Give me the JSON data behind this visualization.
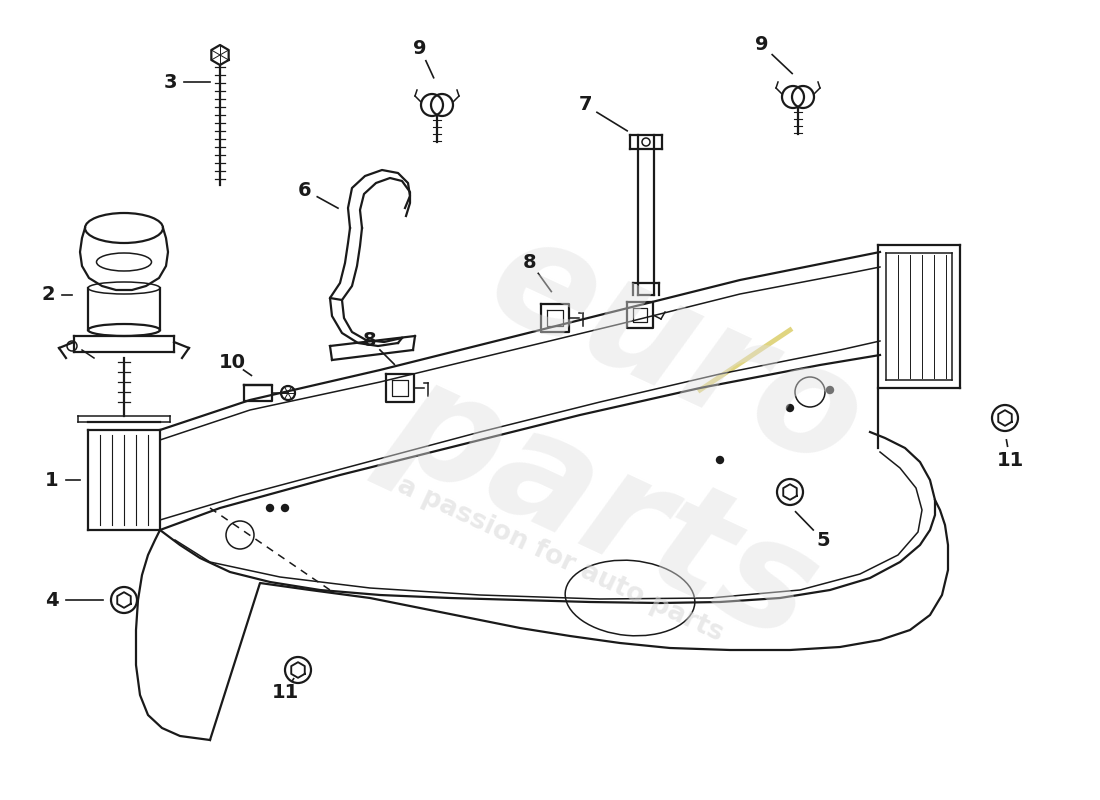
{
  "bg_color": "#ffffff",
  "line_color": "#1a1a1a",
  "label_color": "#1a1a1a",
  "watermark1": "euro parts",
  "watermark2": "a passion for auto parts",
  "figsize": [
    11.0,
    8.0
  ],
  "dpi": 100
}
